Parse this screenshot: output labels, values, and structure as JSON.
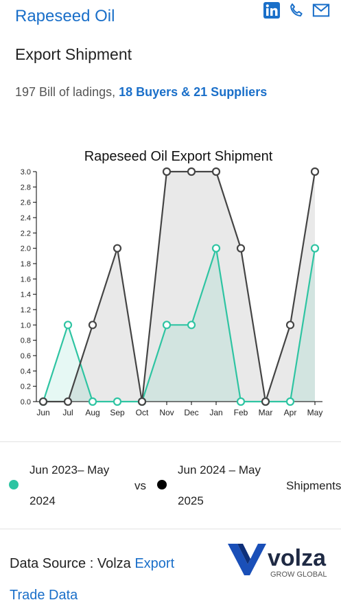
{
  "header": {
    "title": "Rapeseed Oil",
    "subtitle": "Export Shipment"
  },
  "stats": {
    "bills": "197 Bill of ladings,",
    "parties": "18 Buyers & 21 Suppliers"
  },
  "icons": [
    "linkedin-icon",
    "phone-icon",
    "mail-icon"
  ],
  "legend": {
    "series1_line1": "Jun 2023– May",
    "series1_line2": "2024",
    "vs": "vs",
    "series2_line1": "Jun 2024 – May",
    "series2_line2": "2025",
    "metric": "Shipments"
  },
  "source": {
    "prefix": "Data Source : Volza",
    "link1": "Export",
    "link2": "Trade Data"
  },
  "logo": {
    "name": "volza",
    "tagline": "GROW GLOBAL"
  },
  "colors": {
    "accent": "#1a6fc9",
    "series1": "#2ec4a2",
    "series2": "#444444"
  },
  "chart_data": {
    "type": "area",
    "title": "Rapeseed Oil Export Shipment",
    "categories": [
      "Jun",
      "Jul",
      "Aug",
      "Sep",
      "Oct",
      "Nov",
      "Dec",
      "Jan",
      "Feb",
      "Mar",
      "Apr",
      "May"
    ],
    "series": [
      {
        "values": [
          0,
          1,
          0,
          0,
          0,
          1,
          1,
          2,
          0,
          0,
          0,
          2
        ]
      },
      {
        "values": [
          0,
          0,
          1,
          2,
          0,
          3,
          3,
          3,
          2,
          0,
          1,
          3
        ]
      }
    ],
    "ylim": [
      0,
      3.0
    ],
    "yticks": [
      "0.0",
      "0.2",
      "0.4",
      "0.6",
      "0.8",
      "1.0",
      "1.2",
      "1.4",
      "1.6",
      "1.8",
      "2.0",
      "2.2",
      "2.4",
      "2.6",
      "2.8",
      "3.0"
    ],
    "xlabel": "",
    "ylabel": "",
    "grid": false
  }
}
